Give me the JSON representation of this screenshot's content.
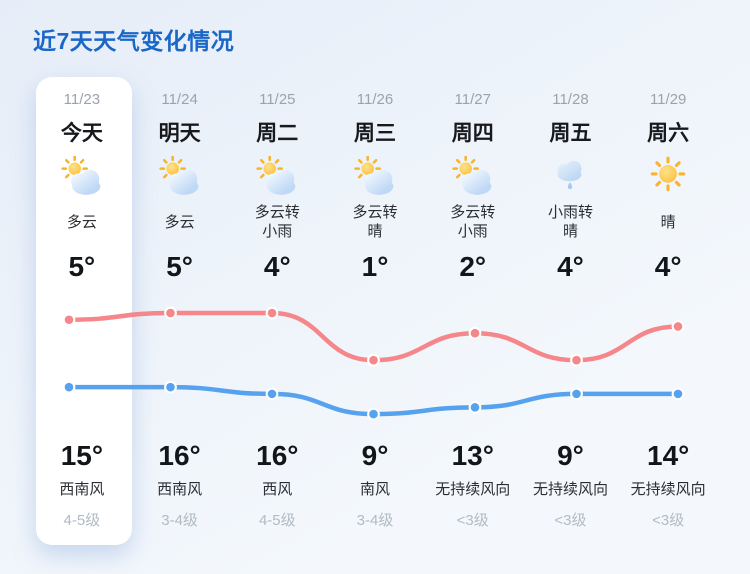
{
  "title": "近7天天气变化情况",
  "accent_color": "#1a67c8",
  "days": [
    {
      "date": "11/23",
      "name": "今天",
      "icon": "partly-cloudy",
      "desc_lines": [
        "多云"
      ],
      "temp_top": "5°",
      "temp_bottom": "15°",
      "wind_dir": "西南风",
      "wind_level": "4-5级",
      "highlighted": true
    },
    {
      "date": "11/24",
      "name": "明天",
      "icon": "partly-cloudy",
      "desc_lines": [
        "多云"
      ],
      "temp_top": "5°",
      "temp_bottom": "16°",
      "wind_dir": "西南风",
      "wind_level": "3-4级",
      "highlighted": false
    },
    {
      "date": "11/25",
      "name": "周二",
      "icon": "partly-cloudy",
      "desc_lines": [
        "多云转",
        "小雨"
      ],
      "temp_top": "4°",
      "temp_bottom": "16°",
      "wind_dir": "西风",
      "wind_level": "4-5级",
      "highlighted": false
    },
    {
      "date": "11/26",
      "name": "周三",
      "icon": "partly-cloudy",
      "desc_lines": [
        "多云转",
        "晴"
      ],
      "temp_top": "1°",
      "temp_bottom": "9°",
      "wind_dir": "南风",
      "wind_level": "3-4级",
      "highlighted": false
    },
    {
      "date": "11/27",
      "name": "周四",
      "icon": "partly-cloudy",
      "desc_lines": [
        "多云转",
        "小雨"
      ],
      "temp_top": "2°",
      "temp_bottom": "13°",
      "wind_dir": "无持续风向",
      "wind_level": "<3级",
      "highlighted": false
    },
    {
      "date": "11/28",
      "name": "周五",
      "icon": "rain",
      "desc_lines": [
        "小雨转",
        "晴"
      ],
      "temp_top": "4°",
      "temp_bottom": "9°",
      "wind_dir": "无持续风向",
      "wind_level": "<3级",
      "highlighted": false
    },
    {
      "date": "11/29",
      "name": "周六",
      "icon": "sunny",
      "desc_lines": [
        "晴"
      ],
      "temp_top": "4°",
      "temp_bottom": "14°",
      "wind_dir": "无持续风向",
      "wind_level": "<3级",
      "highlighted": false
    }
  ],
  "chart_data": {
    "type": "line",
    "categories": [
      "11/23",
      "11/24",
      "11/25",
      "11/26",
      "11/27",
      "11/28",
      "11/29"
    ],
    "series": [
      {
        "name": "upper-temperature-line",
        "color": "#f5868a",
        "values": [
          15,
          16,
          16,
          9,
          13,
          9,
          14
        ]
      },
      {
        "name": "lower-temperature-line",
        "color": "#57a2ee",
        "values": [
          5,
          5,
          4,
          1,
          2,
          4,
          4
        ]
      }
    ],
    "title": "近7天天气变化情况",
    "xlabel": "",
    "ylabel": "",
    "grid": false,
    "legend": false,
    "ylim": [
      0,
      18
    ],
    "point_style": "filled circle with white ring",
    "smoothing": "curved"
  }
}
